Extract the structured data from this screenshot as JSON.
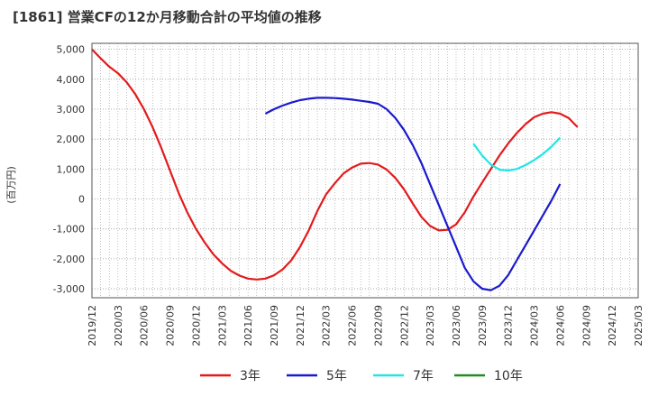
{
  "chart_data": {
    "type": "line",
    "title": "[1861]  営業CFの12か月移動合計の平均値の推移",
    "ylabel": "(百万円)",
    "xlabel": "",
    "ylim": [
      -3300,
      5200
    ],
    "yticks": [
      5000,
      4000,
      3000,
      2000,
      1000,
      0,
      -1000,
      -2000,
      -3000
    ],
    "ytick_labels": [
      "5,000",
      "4,000",
      "3,000",
      "2,000",
      "1,000",
      "0",
      "-1,000",
      "-2,000",
      "-3,000"
    ],
    "x_categories": [
      "2019/12",
      "2020/03",
      "2020/06",
      "2020/09",
      "2020/12",
      "2021/03",
      "2021/06",
      "2021/09",
      "2021/12",
      "2022/03",
      "2022/06",
      "2022/09",
      "2022/12",
      "2023/03",
      "2023/06",
      "2023/09",
      "2023/12",
      "2024/03",
      "2024/06",
      "2024/09",
      "2024/12",
      "2025/03"
    ],
    "grid": true,
    "legend_position": "bottom",
    "series": [
      {
        "name": "3年",
        "color": "#e31a1c",
        "points": [
          [
            "2019/12",
            5000
          ],
          [
            "2020/01",
            4700
          ],
          [
            "2020/02",
            4420
          ],
          [
            "2020/03",
            4200
          ],
          [
            "2020/04",
            3900
          ],
          [
            "2020/05",
            3500
          ],
          [
            "2020/06",
            3000
          ],
          [
            "2020/07",
            2400
          ],
          [
            "2020/08",
            1700
          ],
          [
            "2020/09",
            950
          ],
          [
            "2020/10",
            200
          ],
          [
            "2020/11",
            -450
          ],
          [
            "2020/12",
            -1000
          ],
          [
            "2021/01",
            -1450
          ],
          [
            "2021/02",
            -1850
          ],
          [
            "2021/03",
            -2150
          ],
          [
            "2021/04",
            -2400
          ],
          [
            "2021/05",
            -2560
          ],
          [
            "2021/06",
            -2660
          ],
          [
            "2021/07",
            -2690
          ],
          [
            "2021/08",
            -2660
          ],
          [
            "2021/09",
            -2550
          ],
          [
            "2021/10",
            -2350
          ],
          [
            "2021/11",
            -2050
          ],
          [
            "2021/12",
            -1600
          ],
          [
            "2022/01",
            -1050
          ],
          [
            "2022/02",
            -400
          ],
          [
            "2022/03",
            150
          ],
          [
            "2022/04",
            520
          ],
          [
            "2022/05",
            850
          ],
          [
            "2022/06",
            1050
          ],
          [
            "2022/07",
            1180
          ],
          [
            "2022/08",
            1200
          ],
          [
            "2022/09",
            1150
          ],
          [
            "2022/10",
            980
          ],
          [
            "2022/11",
            700
          ],
          [
            "2022/12",
            320
          ],
          [
            "2023/01",
            -150
          ],
          [
            "2023/02",
            -600
          ],
          [
            "2023/03",
            -900
          ],
          [
            "2023/04",
            -1050
          ],
          [
            "2023/05",
            -1030
          ],
          [
            "2023/06",
            -850
          ],
          [
            "2023/07",
            -450
          ],
          [
            "2023/08",
            80
          ],
          [
            "2023/09",
            550
          ],
          [
            "2023/10",
            1000
          ],
          [
            "2023/11",
            1450
          ],
          [
            "2023/12",
            1850
          ],
          [
            "2024/01",
            2200
          ],
          [
            "2024/02",
            2500
          ],
          [
            "2024/03",
            2730
          ],
          [
            "2024/04",
            2850
          ],
          [
            "2024/05",
            2900
          ],
          [
            "2024/06",
            2850
          ],
          [
            "2024/07",
            2700
          ],
          [
            "2024/08",
            2400
          ]
        ]
      },
      {
        "name": "5年",
        "color": "#1a1acc",
        "points": [
          [
            "2021/08",
            2850
          ],
          [
            "2021/09",
            3000
          ],
          [
            "2021/10",
            3120
          ],
          [
            "2021/11",
            3220
          ],
          [
            "2021/12",
            3300
          ],
          [
            "2022/01",
            3350
          ],
          [
            "2022/02",
            3380
          ],
          [
            "2022/03",
            3380
          ],
          [
            "2022/04",
            3370
          ],
          [
            "2022/05",
            3350
          ],
          [
            "2022/06",
            3320
          ],
          [
            "2022/07",
            3280
          ],
          [
            "2022/08",
            3240
          ],
          [
            "2022/09",
            3180
          ],
          [
            "2022/10",
            3000
          ],
          [
            "2022/11",
            2700
          ],
          [
            "2022/12",
            2300
          ],
          [
            "2023/01",
            1800
          ],
          [
            "2023/02",
            1200
          ],
          [
            "2023/03",
            500
          ],
          [
            "2023/04",
            -200
          ],
          [
            "2023/05",
            -900
          ],
          [
            "2023/06",
            -1600
          ],
          [
            "2023/07",
            -2300
          ],
          [
            "2023/08",
            -2750
          ],
          [
            "2023/09",
            -3000
          ],
          [
            "2023/10",
            -3050
          ],
          [
            "2023/11",
            -2900
          ],
          [
            "2023/12",
            -2550
          ],
          [
            "2024/01",
            -2050
          ],
          [
            "2024/02",
            -1550
          ],
          [
            "2024/03",
            -1050
          ],
          [
            "2024/04",
            -550
          ],
          [
            "2024/05",
            -50
          ],
          [
            "2024/06",
            500
          ]
        ]
      },
      {
        "name": "7年",
        "color": "#22e5e5",
        "points": [
          [
            "2023/08",
            1850
          ],
          [
            "2023/09",
            1450
          ],
          [
            "2023/10",
            1150
          ],
          [
            "2023/11",
            980
          ],
          [
            "2023/12",
            950
          ],
          [
            "2024/01",
            1000
          ],
          [
            "2024/02",
            1130
          ],
          [
            "2024/03",
            1300
          ],
          [
            "2024/04",
            1500
          ],
          [
            "2024/05",
            1750
          ],
          [
            "2024/06",
            2050
          ]
        ]
      },
      {
        "name": "10年",
        "color": "#228b22",
        "points": []
      }
    ]
  }
}
